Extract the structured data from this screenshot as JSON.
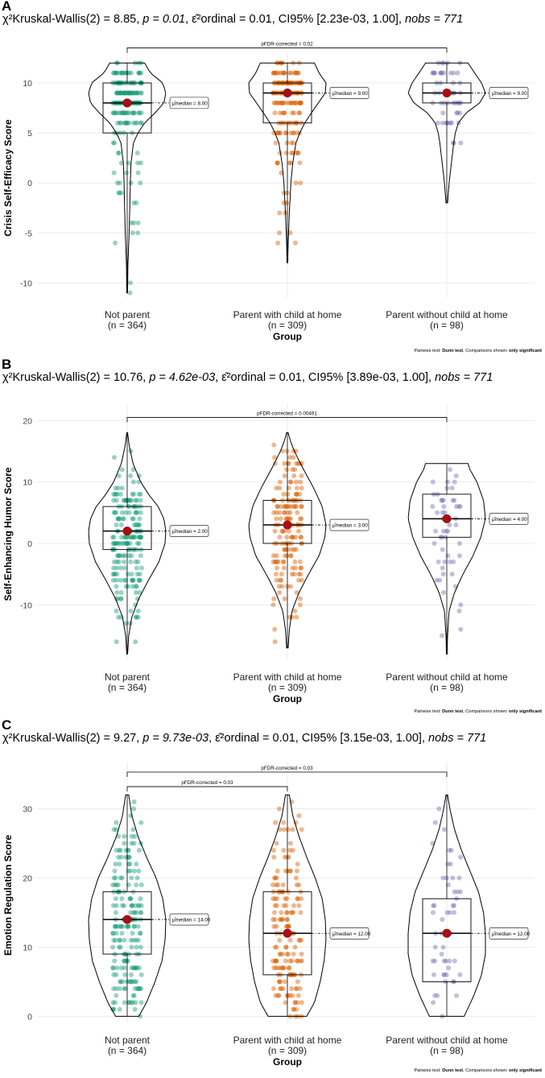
{
  "caption": {
    "prefix": "Pairwise test: ",
    "test": "Dunn test",
    "middle": ", Comparisons shown: ",
    "shown": "only significant"
  },
  "x_title": "Group",
  "median_label_prefix": "μ̂median = ",
  "colors": {
    "Not parent": "#1b9e77",
    "Parent with child at home": "#d95f02",
    "Parent without child at home": "#7570b3",
    "median_point": "#a50f15",
    "grid": "#ebebeb"
  },
  "panels": [
    {
      "label": "A",
      "subtitle": {
        "stat": "χ²Kruskal-Wallis(2) = 8.85",
        "p": "p = 0.01",
        "effect": "ε̂²ordinal = 0.01",
        "ci": "CI95% [2.23e-03, 1.00]",
        "n": "nobs = 771"
      },
      "chart_data": {
        "type": "violin-box-jitter",
        "ylabel": "Crisis Self-Efficacy Score",
        "ylim": [
          -11.5,
          12.5
        ],
        "yticks": [
          -10,
          -5,
          0,
          5,
          10
        ],
        "groups": [
          {
            "name": "Not parent",
            "n": "(n = 364)",
            "q1": 5,
            "median": 8,
            "q3": 10,
            "min": -11,
            "max": 12,
            "median_label": "8.00",
            "density": [
              [
                -11,
                0.01
              ],
              [
                -8,
                0.02
              ],
              [
                -5,
                0.05
              ],
              [
                -2,
                0.07
              ],
              [
                0,
                0.08
              ],
              [
                2,
                0.1
              ],
              [
                4,
                0.16
              ],
              [
                5,
                0.28
              ],
              [
                6,
                0.45
              ],
              [
                7,
                0.72
              ],
              [
                8,
                0.95
              ],
              [
                9,
                1.0
              ],
              [
                10,
                0.92
              ],
              [
                11,
                0.6
              ],
              [
                12,
                0.45
              ]
            ]
          },
          {
            "name": "Parent with child at home",
            "n": "(n = 309)",
            "q1": 6,
            "median": 9,
            "q3": 10,
            "min": -8,
            "max": 12,
            "median_label": "9.00",
            "density": [
              [
                -8,
                0.01
              ],
              [
                -6,
                0.02
              ],
              [
                -3,
                0.05
              ],
              [
                0,
                0.09
              ],
              [
                2,
                0.14
              ],
              [
                4,
                0.22
              ],
              [
                5,
                0.32
              ],
              [
                6,
                0.45
              ],
              [
                7,
                0.62
              ],
              [
                8,
                0.8
              ],
              [
                9,
                0.98
              ],
              [
                10,
                1.0
              ],
              [
                11,
                0.82
              ],
              [
                12,
                0.7
              ]
            ]
          },
          {
            "name": "Parent without child at home",
            "n": "(n = 98)",
            "q1": 8,
            "median": 9,
            "q3": 10,
            "min": -2,
            "max": 12,
            "median_label": "9.00",
            "density": [
              [
                -2,
                0.02
              ],
              [
                0,
                0.06
              ],
              [
                2,
                0.12
              ],
              [
                4,
                0.18
              ],
              [
                5,
                0.22
              ],
              [
                6,
                0.3
              ],
              [
                7,
                0.5
              ],
              [
                8,
                0.85
              ],
              [
                9,
                1.0
              ],
              [
                10,
                0.9
              ],
              [
                11,
                0.72
              ],
              [
                12,
                0.55
              ]
            ]
          }
        ],
        "comparisons": [
          {
            "from": 0,
            "to": 2,
            "y": 13.5,
            "label": "pFDR-corrected = 0.02"
          }
        ]
      }
    },
    {
      "label": "B",
      "subtitle": {
        "stat": "χ²Kruskal-Wallis(2) = 10.76",
        "p": "p = 4.62e-03",
        "effect": "ε̂²ordinal = 0.01",
        "ci": "CI95% [3.89e-03, 1.00]",
        "n": "nobs = 771"
      },
      "chart_data": {
        "type": "violin-box-jitter",
        "ylabel": "Self-Enhancing Humor Score",
        "ylim": [
          -19,
          22
        ],
        "yticks": [
          -10,
          0,
          10,
          20
        ],
        "groups": [
          {
            "name": "Not parent",
            "n": "(n = 364)",
            "q1": -1,
            "median": 2,
            "q3": 6,
            "min": -18,
            "max": 18,
            "median_label": "2.00",
            "density": [
              [
                -18,
                0.01
              ],
              [
                -15,
                0.04
              ],
              [
                -12,
                0.12
              ],
              [
                -9,
                0.3
              ],
              [
                -6,
                0.55
              ],
              [
                -3,
                0.82
              ],
              [
                0,
                0.98
              ],
              [
                2,
                1.0
              ],
              [
                4,
                0.95
              ],
              [
                6,
                0.8
              ],
              [
                8,
                0.55
              ],
              [
                10,
                0.35
              ],
              [
                13,
                0.15
              ],
              [
                16,
                0.05
              ],
              [
                18,
                0.01
              ]
            ]
          },
          {
            "name": "Parent with child at home",
            "n": "(n = 309)",
            "q1": 0,
            "median": 3,
            "q3": 7,
            "min": -17,
            "max": 18,
            "median_label": "3.00",
            "density": [
              [
                -17,
                0.02
              ],
              [
                -14,
                0.05
              ],
              [
                -11,
                0.12
              ],
              [
                -8,
                0.3
              ],
              [
                -5,
                0.55
              ],
              [
                -2,
                0.82
              ],
              [
                1,
                0.97
              ],
              [
                3,
                1.0
              ],
              [
                6,
                0.9
              ],
              [
                9,
                0.68
              ],
              [
                12,
                0.42
              ],
              [
                15,
                0.18
              ],
              [
                17,
                0.06
              ],
              [
                18,
                0.02
              ]
            ]
          },
          {
            "name": "Parent without child at home",
            "n": "(n = 98)",
            "q1": 1,
            "median": 4,
            "q3": 8,
            "min": -18,
            "max": 13,
            "median_label": "4.00",
            "density": [
              [
                -18,
                0.01
              ],
              [
                -15,
                0.02
              ],
              [
                -11,
                0.06
              ],
              [
                -8,
                0.2
              ],
              [
                -5,
                0.42
              ],
              [
                -2,
                0.68
              ],
              [
                1,
                0.88
              ],
              [
                4,
                1.0
              ],
              [
                7,
                0.95
              ],
              [
                10,
                0.78
              ],
              [
                12,
                0.6
              ],
              [
                13,
                0.55
              ]
            ]
          }
        ],
        "comparisons": [
          {
            "from": 0,
            "to": 2,
            "y": 20.5,
            "label": "pFDR-corrected = 0.00491"
          }
        ]
      }
    },
    {
      "label": "C",
      "subtitle": {
        "stat": "χ²Kruskal-Wallis(2) = 9.27",
        "p": "p = 9.73e-03",
        "effect": "ε̂²ordinal = 0.01",
        "ci": "CI95% [3.15e-03, 1.00]",
        "n": "nobs = 771"
      },
      "chart_data": {
        "type": "violin-box-jitter",
        "ylabel": "Emotion Regulation Score",
        "ylim": [
          -1,
          36
        ],
        "yticks": [
          0,
          10,
          20,
          30
        ],
        "groups": [
          {
            "name": "Not parent",
            "n": "(n = 364)",
            "q1": 9,
            "median": 14,
            "q3": 18,
            "min": 0,
            "max": 32,
            "median_label": "14.00",
            "density": [
              [
                0,
                0.3
              ],
              [
                2,
                0.5
              ],
              [
                5,
                0.72
              ],
              [
                8,
                0.9
              ],
              [
                11,
                0.98
              ],
              [
                14,
                1.0
              ],
              [
                17,
                0.92
              ],
              [
                20,
                0.75
              ],
              [
                23,
                0.5
              ],
              [
                26,
                0.28
              ],
              [
                29,
                0.12
              ],
              [
                32,
                0.04
              ]
            ]
          },
          {
            "name": "Parent with child at home",
            "n": "(n = 309)",
            "q1": 6,
            "median": 12,
            "q3": 18,
            "min": 0,
            "max": 32,
            "median_label": "12.00",
            "density": [
              [
                0,
                0.5
              ],
              [
                2,
                0.7
              ],
              [
                5,
                0.85
              ],
              [
                8,
                0.95
              ],
              [
                11,
                1.0
              ],
              [
                14,
                0.98
              ],
              [
                17,
                0.9
              ],
              [
                20,
                0.72
              ],
              [
                23,
                0.5
              ],
              [
                26,
                0.3
              ],
              [
                29,
                0.14
              ],
              [
                32,
                0.05
              ]
            ]
          },
          {
            "name": "Parent without child at home",
            "n": "(n = 98)",
            "q1": 5,
            "median": 12,
            "q3": 17,
            "min": 0,
            "max": 32,
            "median_label": "12.00",
            "density": [
              [
                0,
                0.45
              ],
              [
                3,
                0.7
              ],
              [
                6,
                0.9
              ],
              [
                9,
                1.0
              ],
              [
                12,
                1.0
              ],
              [
                15,
                0.95
              ],
              [
                18,
                0.82
              ],
              [
                21,
                0.6
              ],
              [
                24,
                0.38
              ],
              [
                27,
                0.2
              ],
              [
                30,
                0.08
              ],
              [
                32,
                0.02
              ]
            ]
          }
        ],
        "comparisons": [
          {
            "from": 0,
            "to": 1,
            "y": 33.2,
            "label": "pFDR-corrected = 0.03"
          },
          {
            "from": 0,
            "to": 2,
            "y": 35.3,
            "label": "pFDR-corrected = 0.03"
          }
        ]
      }
    }
  ]
}
